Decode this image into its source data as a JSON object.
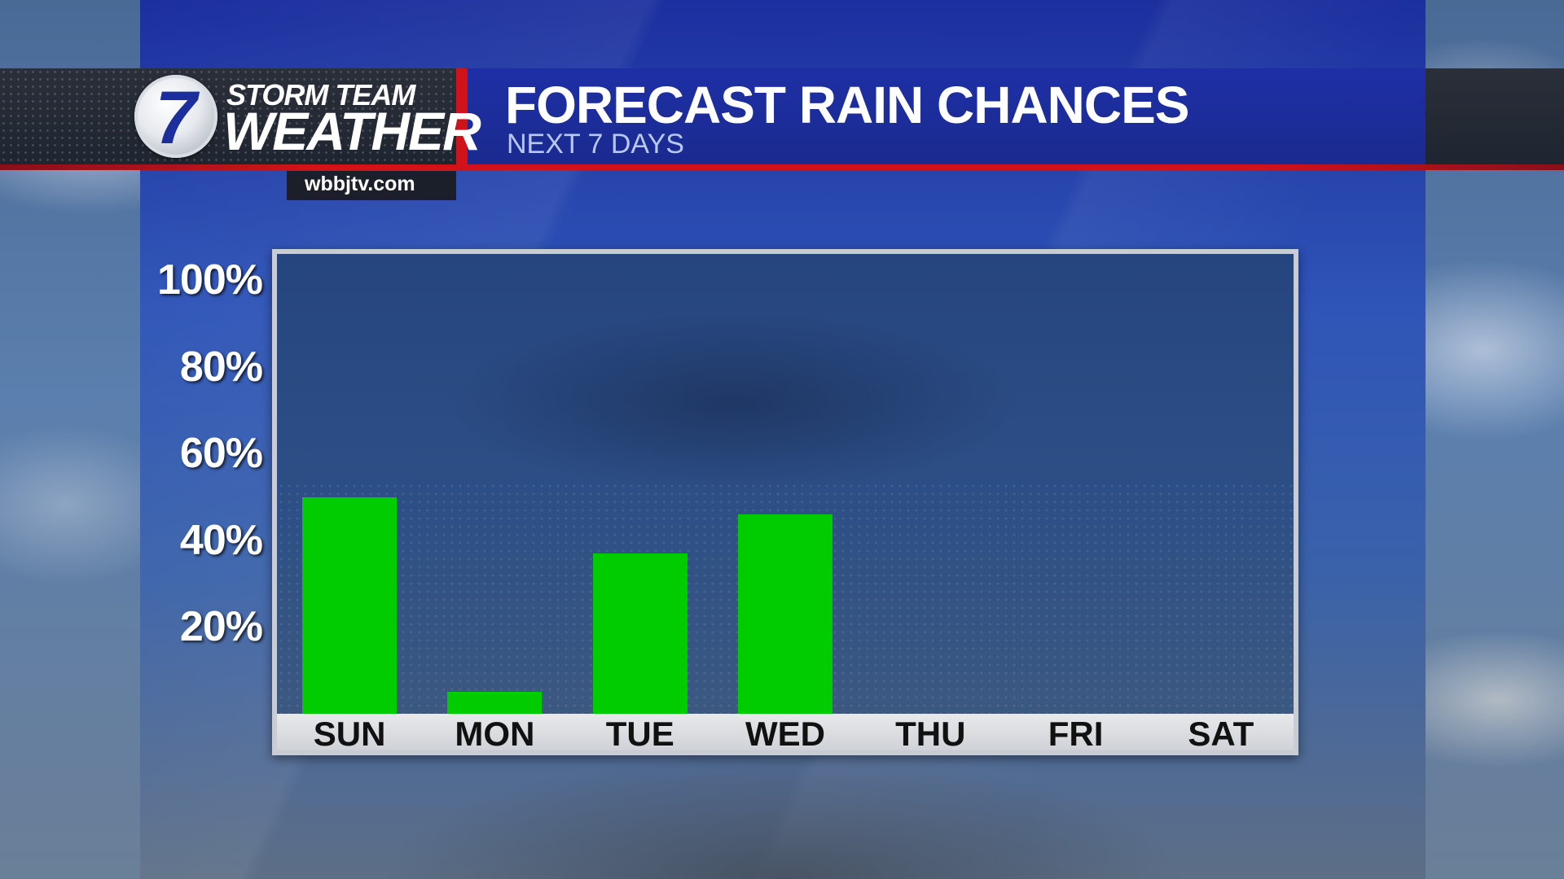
{
  "header": {
    "brand_line_1": "STORM TEAM",
    "brand_line_2": "WEATHER",
    "logo_number": "7",
    "website": "wbbjtv.com",
    "title": "FORECAST RAIN CHANCES",
    "subtitle": "NEXT 7 DAYS"
  },
  "colors": {
    "bar": "#00cc00",
    "header_blue": "#1e2fa6",
    "accent_red": "#d0131b"
  },
  "chart_data": {
    "type": "bar",
    "title": "FORECAST RAIN CHANCES",
    "subtitle": "NEXT 7 DAYS",
    "categories": [
      "SUN",
      "MON",
      "TUE",
      "WED",
      "THU",
      "FRI",
      "SAT"
    ],
    "values": [
      50,
      5,
      37,
      46,
      0,
      0,
      0
    ],
    "ylim": [
      0,
      100
    ],
    "y_ticks": [
      20,
      40,
      60,
      80,
      100
    ],
    "y_tick_labels": [
      "20%",
      "40%",
      "60%",
      "80%",
      "100%"
    ],
    "xlabel": "",
    "ylabel": "",
    "grid": false,
    "legend": "none"
  }
}
